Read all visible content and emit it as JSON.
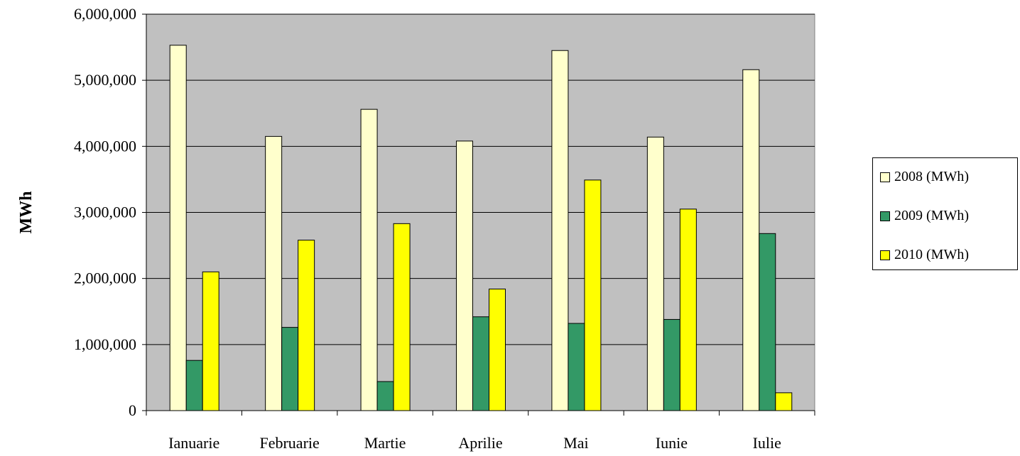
{
  "chart_data": {
    "type": "bar",
    "title": "",
    "xlabel": "",
    "ylabel": "MWh",
    "ylim": [
      0,
      6000000
    ],
    "yticks": [
      0,
      1000000,
      2000000,
      3000000,
      4000000,
      5000000,
      6000000
    ],
    "ytick_labels": [
      "0",
      "1,000,000",
      "2,000,000",
      "3,000,000",
      "4,000,000",
      "5,000,000",
      "6,000,000"
    ],
    "categories": [
      "Ianuarie",
      "Februarie",
      "Martie",
      "Aprilie",
      "Mai",
      "Iunie",
      "Iulie"
    ],
    "grid": true,
    "legend_position": "right",
    "plot_background": "#c0c0c0",
    "series": [
      {
        "name": "2008 (MWh)",
        "color": "#ffffcc",
        "values": [
          5530000,
          4150000,
          4560000,
          4080000,
          5450000,
          4140000,
          5160000
        ]
      },
      {
        "name": "2009 (MWh)",
        "color": "#339966",
        "values": [
          760000,
          1260000,
          440000,
          1420000,
          1320000,
          1380000,
          2680000
        ]
      },
      {
        "name": "2010 (MWh)",
        "color": "#ffff00",
        "values": [
          2100000,
          2580000,
          2830000,
          1840000,
          3490000,
          3050000,
          270000
        ]
      }
    ]
  }
}
